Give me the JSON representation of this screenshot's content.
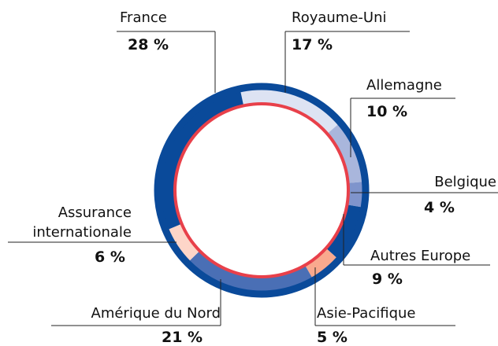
{
  "chart_data": {
    "type": "donut",
    "categories": [
      "Royaume-Uni",
      "Allemagne",
      "Belgique",
      "Autres Europe",
      "Asie-Pacifique",
      "Amérique du Nord",
      "Assurance internationale",
      "France"
    ],
    "values": [
      17,
      10,
      4,
      9,
      5,
      21,
      6,
      28
    ],
    "value_labels": [
      "17 %",
      "10 %",
      "4 %",
      "9 %",
      "5 %",
      "21 %",
      "6 %",
      "28 %"
    ],
    "colors": [
      "#dde3f3",
      "#a9b6dc",
      "#7f94cc",
      "#0a4a9a",
      "#f9a98e",
      "#4a6fb5",
      "#fdd5c8",
      "#0a4a9a"
    ]
  }
}
